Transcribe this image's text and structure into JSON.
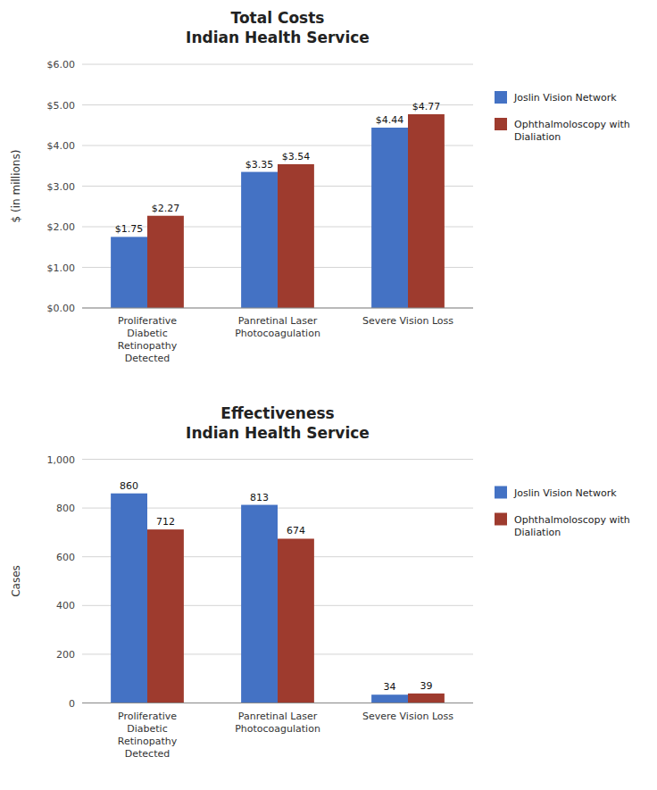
{
  "chart_data": [
    {
      "type": "bar",
      "title": "Total Costs\nIndian Health Service",
      "y_label": "$ (in millions)",
      "categories": [
        "Proliferative\nDiabetic\nRetinopathy\nDetected",
        "Panretinal Laser\nPhotocoagulation",
        "Severe Vision Loss"
      ],
      "series": [
        {
          "name": "Joslin Vision Network",
          "color": "#4472C4",
          "values": [
            1.75,
            3.35,
            4.44
          ],
          "value_labels": [
            "$1.75",
            "$3.35",
            "$4.44"
          ]
        },
        {
          "name": "Ophthalmoloscopy with\nDialiation",
          "color": "#9E3B2E",
          "values": [
            2.27,
            3.54,
            4.77
          ],
          "value_labels": [
            "$2.27",
            "$3.54",
            "$4.77"
          ]
        }
      ],
      "ylim": [
        0,
        6.0
      ],
      "yticks": [
        {
          "value": 0.0,
          "label": "$0.00"
        },
        {
          "value": 1.0,
          "label": "$1.00"
        },
        {
          "value": 2.0,
          "label": "$2.00"
        },
        {
          "value": 3.0,
          "label": "$3.00"
        },
        {
          "value": 4.0,
          "label": "$4.00"
        },
        {
          "value": 5.0,
          "label": "$5.00"
        },
        {
          "value": 6.0,
          "label": "$6.00"
        }
      ],
      "grid": true,
      "legend": "right",
      "data_labels": true
    },
    {
      "type": "bar",
      "title": "Effectiveness\nIndian Health Service",
      "y_label": "Cases",
      "categories": [
        "Proliferative\nDiabetic\nRetinopathy\nDetected",
        "Panretinal Laser\nPhotocoagulation",
        "Severe Vision Loss"
      ],
      "series": [
        {
          "name": "Joslin Vision Network",
          "color": "#4472C4",
          "values": [
            860,
            813,
            34
          ]
        },
        {
          "name": "Ophthalmoloscopy with\nDialiation",
          "color": "#9E3B2E",
          "values": [
            712,
            674,
            39
          ]
        }
      ],
      "ylim": [
        0,
        1000
      ],
      "yticks": [
        0,
        200,
        400,
        600,
        800,
        {
          "value": 1000,
          "label": "1,000"
        }
      ],
      "grid": true,
      "legend": "right",
      "data_labels": true
    }
  ]
}
